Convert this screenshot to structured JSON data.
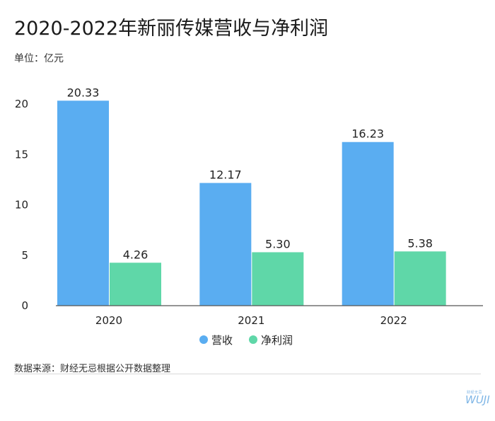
{
  "header": {
    "title": "2020-2022年新丽传媒营收与净利润",
    "unit": "单位：亿元"
  },
  "footer": {
    "source": "数据来源：财经无忌根据公开数据整理",
    "logo_small": "财经无忌",
    "logo_word": "WUJI"
  },
  "colors": {
    "revenue": "#5aadf1",
    "profit": "#5fd7a8",
    "axis": "#555555",
    "text": "#222222"
  },
  "chart_data": {
    "type": "bar",
    "categories": [
      "2020",
      "2021",
      "2022"
    ],
    "series": [
      {
        "name": "营收",
        "values": [
          20.33,
          12.17,
          16.23
        ],
        "labels": [
          "20.33",
          "12.17",
          "16.23"
        ]
      },
      {
        "name": "净利润",
        "values": [
          4.26,
          5.3,
          5.38
        ],
        "labels": [
          "4.26",
          "5.30",
          "5.38"
        ]
      }
    ],
    "yticks": [
      "0",
      "5",
      "10",
      "15",
      "20"
    ],
    "ylim": [
      0,
      20
    ],
    "grid": false,
    "legend": "bottom-center"
  }
}
